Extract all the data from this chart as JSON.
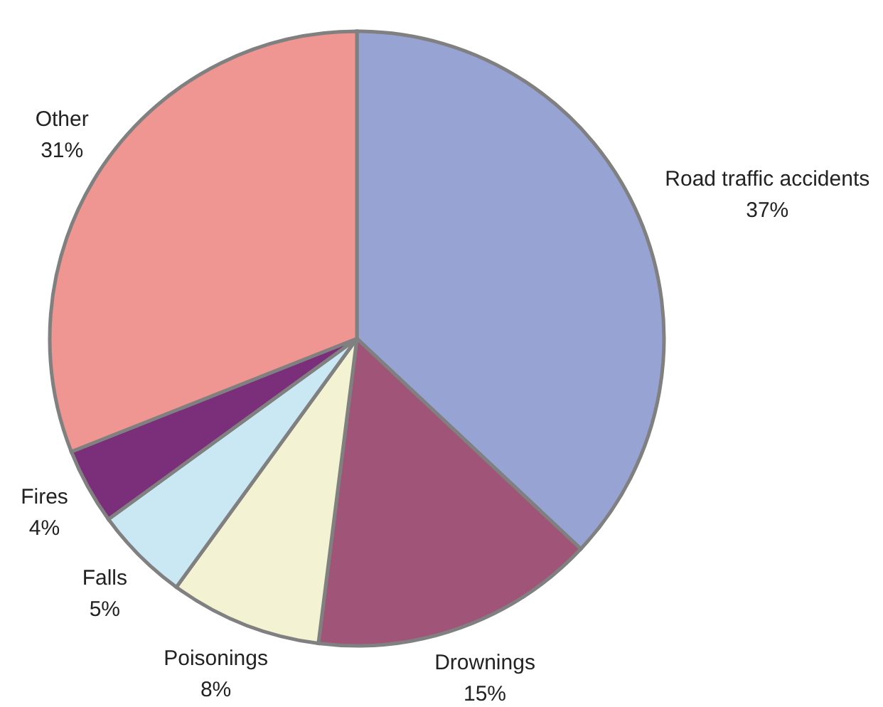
{
  "chart_data": {
    "type": "pie",
    "categories": [
      "Road traffic accidents",
      "Drownings",
      "Poisonings",
      "Falls",
      "Fires",
      "Other"
    ],
    "values": [
      37,
      15,
      8,
      5,
      4,
      31
    ],
    "colors": [
      "#97a3d2",
      "#a05578",
      "#f3f2d3",
      "#c9e8f3",
      "#7b2e79",
      "#ef9592"
    ],
    "value_labels": [
      "37%",
      "15%",
      "8%",
      "5%",
      "4%",
      "31%"
    ]
  }
}
